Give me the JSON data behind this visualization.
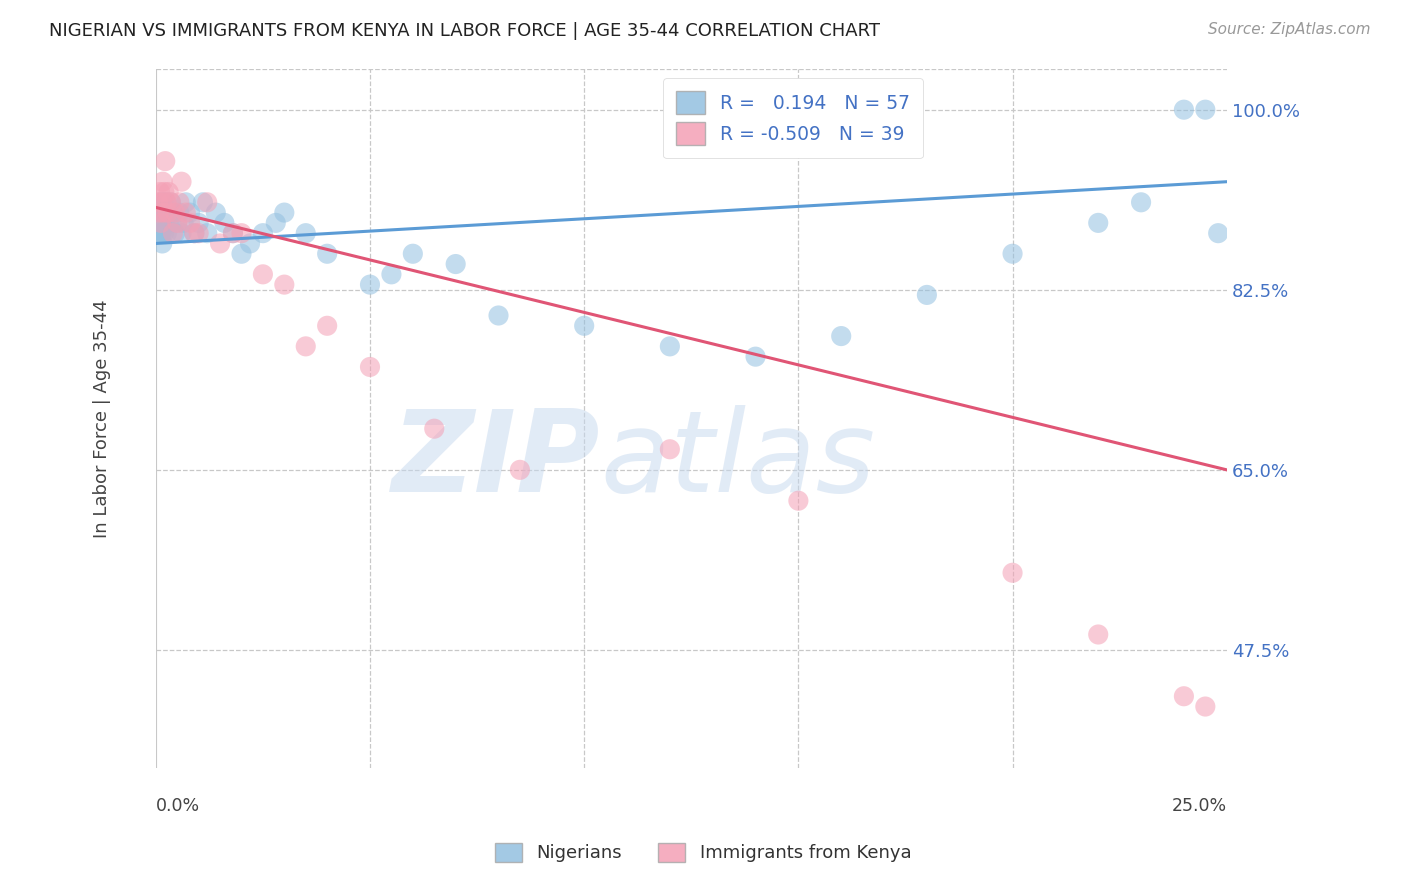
{
  "title": "NIGERIAN VS IMMIGRANTS FROM KENYA IN LABOR FORCE | AGE 35-44 CORRELATION CHART",
  "source": "Source: ZipAtlas.com",
  "ylabel": "In Labor Force | Age 35-44",
  "yticks": [
    47.5,
    65.0,
    82.5,
    100.0
  ],
  "ytick_labels": [
    "47.5%",
    "65.0%",
    "82.5%",
    "100.0%"
  ],
  "xmin": 0.0,
  "xmax": 25.0,
  "ymin": 36.0,
  "ymax": 104.0,
  "legend_label_nigerians": "Nigerians",
  "legend_label_kenya": "Immigrants from Kenya",
  "blue_scatter_color": "#93c0e0",
  "pink_scatter_color": "#f4a0b5",
  "blue_line_color": "#5b9bd5",
  "pink_line_color": "#e05575",
  "r_nig": 0.194,
  "n_nig": 57,
  "r_ken": -0.509,
  "n_ken": 39,
  "nig_x": [
    0.05,
    0.08,
    0.1,
    0.11,
    0.12,
    0.13,
    0.14,
    0.15,
    0.16,
    0.17,
    0.18,
    0.19,
    0.2,
    0.22,
    0.24,
    0.26,
    0.28,
    0.3,
    0.35,
    0.4,
    0.45,
    0.5,
    0.55,
    0.6,
    0.65,
    0.7,
    0.8,
    0.9,
    1.0,
    1.1,
    1.2,
    1.4,
    1.6,
    1.8,
    2.0,
    2.2,
    2.5,
    2.8,
    3.0,
    3.5,
    4.0,
    5.0,
    5.5,
    6.0,
    7.0,
    8.0,
    10.0,
    12.0,
    14.0,
    16.0,
    18.0,
    20.0,
    22.0,
    23.0,
    24.0,
    24.5,
    24.8
  ],
  "nig_y": [
    88,
    90,
    91,
    88,
    89,
    90,
    88,
    87,
    89,
    90,
    91,
    88,
    89,
    90,
    91,
    88,
    90,
    89,
    91,
    90,
    88,
    89,
    90,
    88,
    89,
    91,
    90,
    88,
    89,
    91,
    88,
    90,
    89,
    88,
    86,
    87,
    88,
    89,
    90,
    88,
    86,
    83,
    84,
    86,
    85,
    80,
    79,
    77,
    76,
    78,
    82,
    86,
    89,
    91,
    100,
    100,
    88
  ],
  "ken_x": [
    0.05,
    0.08,
    0.1,
    0.12,
    0.14,
    0.16,
    0.18,
    0.2,
    0.22,
    0.25,
    0.28,
    0.3,
    0.35,
    0.4,
    0.45,
    0.5,
    0.55,
    0.6,
    0.7,
    0.8,
    0.9,
    1.0,
    1.2,
    1.5,
    1.8,
    2.0,
    2.5,
    3.0,
    3.5,
    4.0,
    5.0,
    6.5,
    8.5,
    12.0,
    15.0,
    20.0,
    22.0,
    24.0,
    24.5
  ],
  "ken_y": [
    91,
    90,
    92,
    89,
    91,
    93,
    90,
    92,
    95,
    91,
    90,
    92,
    91,
    88,
    90,
    89,
    91,
    93,
    90,
    89,
    88,
    88,
    91,
    87,
    88,
    88,
    84,
    83,
    77,
    79,
    75,
    69,
    65,
    67,
    62,
    55,
    49,
    43,
    42
  ]
}
